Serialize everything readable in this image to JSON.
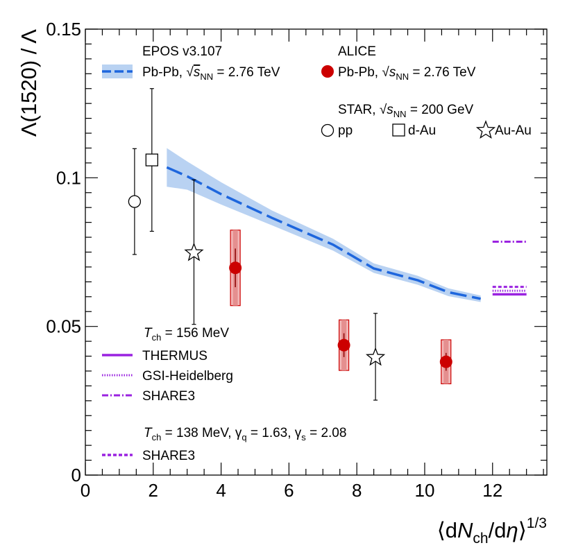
{
  "chart_data": {
    "type": "scatter",
    "title": "",
    "ylabel": "Λ(1520) / Λ",
    "xlabel": "⟨dN_ch/dη⟩^1/3",
    "xlim": [
      0,
      13.6
    ],
    "ylim": [
      0,
      0.15
    ],
    "x_ticks": [
      "0",
      "2",
      "4",
      "6",
      "8",
      "10",
      "12"
    ],
    "y_ticks": [
      "0",
      "0.05",
      "0.1",
      "0.15"
    ],
    "series": [
      {
        "name": "ALICE Pb-Pb, √sNN = 2.76 TeV",
        "marker": "filled-circle",
        "color": "#cc0000",
        "points": [
          {
            "x": 4.42,
            "y": 0.0697,
            "stat": 0.0065,
            "sys": 0.0127
          },
          {
            "x": 7.62,
            "y": 0.0437,
            "stat": 0.004,
            "sys": 0.0085
          },
          {
            "x": 10.63,
            "y": 0.0381,
            "stat": 0.003,
            "sys": 0.0074
          }
        ]
      },
      {
        "name": "STAR pp, √sNN = 200 GeV",
        "marker": "open-circle",
        "points": [
          {
            "x": 1.45,
            "y": 0.092,
            "err": 0.0178
          }
        ]
      },
      {
        "name": "STAR d-Au, √sNN = 200 GeV",
        "marker": "open-square",
        "points": [
          {
            "x": 1.96,
            "y": 0.106,
            "err": 0.024
          }
        ]
      },
      {
        "name": "STAR Au-Au, √sNN = 200 GeV",
        "marker": "open-star",
        "points": [
          {
            "x": 3.2,
            "y": 0.075,
            "err": 0.0243
          },
          {
            "x": 8.55,
            "y": 0.0398,
            "err": 0.0146
          }
        ]
      },
      {
        "name": "EPOS v3.107 Pb-Pb, √sNN = 2.76 TeV",
        "style": "dashed-band",
        "color": "#1e66dd",
        "points": [
          {
            "x": 2.4,
            "y": 0.1035,
            "lo": 0.097,
            "hi": 0.11
          },
          {
            "x": 3.0,
            "y": 0.1005,
            "lo": 0.096,
            "hi": 0.1055
          },
          {
            "x": 4.0,
            "y": 0.0945,
            "lo": 0.091,
            "hi": 0.0985
          },
          {
            "x": 5.5,
            "y": 0.0865,
            "lo": 0.084,
            "hi": 0.089
          },
          {
            "x": 7.3,
            "y": 0.0775,
            "lo": 0.0755,
            "hi": 0.0795
          },
          {
            "x": 8.5,
            "y": 0.0695,
            "lo": 0.068,
            "hi": 0.0712
          },
          {
            "x": 9.8,
            "y": 0.0655,
            "lo": 0.064,
            "hi": 0.067
          },
          {
            "x": 10.7,
            "y": 0.0615,
            "lo": 0.0602,
            "hi": 0.0628
          },
          {
            "x": 11.65,
            "y": 0.0593,
            "lo": 0.0582,
            "hi": 0.0604
          }
        ]
      },
      {
        "name": "THERMUS (Tch = 156 MeV)",
        "style": "solid",
        "color": "#9a22e0",
        "points": [
          {
            "x": 12.0,
            "y": 0.0608
          },
          {
            "x": 13.0,
            "y": 0.0608
          }
        ]
      },
      {
        "name": "GSI-Heidelberg (Tch = 156 MeV)",
        "style": "dotted",
        "color": "#9a22e0",
        "points": [
          {
            "x": 12.0,
            "y": 0.062
          },
          {
            "x": 13.0,
            "y": 0.062
          }
        ]
      },
      {
        "name": "SHARE3 (Tch = 156 MeV)",
        "style": "dash-dot",
        "color": "#9a22e0",
        "points": [
          {
            "x": 12.0,
            "y": 0.0785
          },
          {
            "x": 13.0,
            "y": 0.0785
          }
        ]
      },
      {
        "name": "SHARE3 (Tch = 138 MeV, γq = 1.63, γs = 2.08)",
        "style": "dashed",
        "color": "#9a22e0",
        "points": [
          {
            "x": 12.0,
            "y": 0.0633
          },
          {
            "x": 13.0,
            "y": 0.0633
          }
        ]
      }
    ],
    "legend": {
      "epos_title": "EPOS v3.107",
      "pbpb_label": "Pb-Pb, ",
      "energy_276": " = 2.76 TeV",
      "alice_title": "ALICE",
      "star_title": "STAR, ",
      "energy_200": " = 200 GeV",
      "pp_label": "pp",
      "dau_label": "d-Au",
      "auau_label": "Au-Au",
      "sqrt_symbol": "√",
      "s_letter": "s",
      "nn_sub": "NN",
      "t_letter": "T",
      "ch_sub": "ch",
      "tch156_rest": " = 156 MeV",
      "thermus": "THERMUS",
      "gsi": "GSI-Heidelberg",
      "share3": "SHARE3",
      "tch138_rest": " = 138 MeV, ",
      "gamma_symbol": "γ",
      "q_sub": "q",
      "gq_value": " = 1.63, ",
      "s_sub": "s",
      "gs_value": " = 2.08",
      "share3_b": "SHARE3"
    },
    "axis_labels": {
      "y_label": "Λ(1520) / Λ",
      "x_lang": "⟨d",
      "x_N": "N",
      "x_ch": "ch",
      "x_d": "/d",
      "x_eta": "η",
      "x_rang": "⟩",
      "x_exp": "1/3"
    }
  }
}
